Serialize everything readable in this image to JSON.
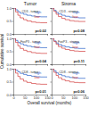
{
  "figure": {
    "ylabel": "Cumulative survival",
    "xlabel": "Overall survival (months)"
  },
  "chart_data": [
    {
      "type": "line",
      "title": "Tumor",
      "annotation": "CD3 - tumor",
      "p_label": "p=0.02",
      "xlim": [
        0,
        150
      ],
      "ylim": [
        0,
        1
      ],
      "xticks": [
        0,
        50,
        100,
        150
      ],
      "yticks": [
        {
          "value": 0,
          "label": "0.0"
        },
        {
          "value": 0.5,
          "label": "0.5"
        },
        {
          "value": 1,
          "label": "1.0"
        }
      ],
      "tick_labels": "y",
      "series": [
        {
          "name": "high",
          "color": "#2a62c9",
          "x": [
            0,
            10,
            20,
            30,
            45,
            60,
            80,
            100,
            120,
            150
          ],
          "values": [
            1,
            0.93,
            0.86,
            0.8,
            0.76,
            0.72,
            0.69,
            0.67,
            0.66,
            0.66
          ]
        },
        {
          "name": "low",
          "color": "#d23c3c",
          "x": [
            0,
            10,
            20,
            30,
            45,
            60,
            80,
            100,
            120,
            150
          ],
          "values": [
            1,
            0.85,
            0.72,
            0.62,
            0.55,
            0.5,
            0.46,
            0.44,
            0.43,
            0.43
          ]
        }
      ]
    },
    {
      "type": "line",
      "title": "Stroma",
      "annotation": "CD3 - stroma",
      "p_label": "p=0.08",
      "xlim": [
        0,
        150
      ],
      "ylim": [
        0,
        1
      ],
      "xticks": [
        0,
        50,
        100,
        150
      ],
      "yticks": [
        {
          "value": 0,
          "label": "0.0"
        },
        {
          "value": 0.5,
          "label": "0.5"
        },
        {
          "value": 1,
          "label": "1.0"
        }
      ],
      "tick_labels": false,
      "series": [
        {
          "name": "high",
          "color": "#2a62c9",
          "x": [
            0,
            10,
            20,
            30,
            45,
            60,
            80,
            100,
            120,
            150
          ],
          "values": [
            1,
            0.91,
            0.83,
            0.77,
            0.72,
            0.68,
            0.65,
            0.63,
            0.62,
            0.62
          ]
        },
        {
          "name": "low",
          "color": "#d23c3c",
          "x": [
            0,
            10,
            20,
            30,
            45,
            60,
            80,
            100,
            120,
            150
          ],
          "values": [
            1,
            0.87,
            0.76,
            0.67,
            0.6,
            0.55,
            0.51,
            0.49,
            0.48,
            0.48
          ]
        }
      ]
    },
    {
      "type": "line",
      "annotation": "FoxP3 - tumor",
      "p_label": "p=0.04",
      "xlim": [
        0,
        150
      ],
      "ylim": [
        0,
        1
      ],
      "xticks": [
        0,
        50,
        100,
        150
      ],
      "yticks": [
        {
          "value": 0,
          "label": "0.0"
        },
        {
          "value": 0.5,
          "label": "0.5"
        },
        {
          "value": 1,
          "label": "1.0"
        }
      ],
      "tick_labels": "y",
      "series": [
        {
          "name": "high",
          "color": "#2a62c9",
          "x": [
            0,
            10,
            20,
            30,
            45,
            60,
            80,
            100,
            120,
            150
          ],
          "values": [
            1,
            0.92,
            0.85,
            0.79,
            0.74,
            0.7,
            0.67,
            0.65,
            0.64,
            0.64
          ]
        },
        {
          "name": "low",
          "color": "#d23c3c",
          "x": [
            0,
            10,
            20,
            30,
            45,
            60,
            80,
            100,
            120,
            150
          ],
          "values": [
            1,
            0.84,
            0.71,
            0.61,
            0.54,
            0.49,
            0.45,
            0.43,
            0.42,
            0.42
          ]
        }
      ]
    },
    {
      "type": "line",
      "annotation": "FoxP3 - stroma",
      "p_label": "p=0.11",
      "xlim": [
        0,
        150
      ],
      "ylim": [
        0,
        1
      ],
      "xticks": [
        0,
        50,
        100,
        150
      ],
      "yticks": [
        {
          "value": 0,
          "label": "0.0"
        },
        {
          "value": 0.5,
          "label": "0.5"
        },
        {
          "value": 1,
          "label": "1.0"
        }
      ],
      "tick_labels": false,
      "series": [
        {
          "name": "high",
          "color": "#2a62c9",
          "x": [
            0,
            10,
            20,
            30,
            45,
            60,
            80,
            100,
            120,
            150
          ],
          "values": [
            1,
            0.9,
            0.82,
            0.76,
            0.71,
            0.67,
            0.64,
            0.62,
            0.61,
            0.61
          ]
        },
        {
          "name": "low",
          "color": "#d23c3c",
          "x": [
            0,
            10,
            20,
            30,
            45,
            60,
            80,
            100,
            120,
            150
          ],
          "values": [
            1,
            0.88,
            0.77,
            0.68,
            0.62,
            0.57,
            0.53,
            0.51,
            0.5,
            0.5
          ]
        }
      ]
    },
    {
      "type": "line",
      "annotation": "CD8 - tumor",
      "p_label": "p=0.01",
      "xlim": [
        0,
        150
      ],
      "ylim": [
        0,
        1
      ],
      "xticks": [
        0,
        50,
        100,
        150
      ],
      "yticks": [
        {
          "value": 0,
          "label": "0.0"
        },
        {
          "value": 0.5,
          "label": "0.5"
        },
        {
          "value": 1,
          "label": "1.0"
        }
      ],
      "series": [
        {
          "name": "high",
          "color": "#2a62c9",
          "x": [
            0,
            10,
            20,
            30,
            45,
            60,
            80,
            100,
            120,
            150
          ],
          "values": [
            1,
            0.94,
            0.88,
            0.82,
            0.78,
            0.74,
            0.71,
            0.69,
            0.68,
            0.68
          ]
        },
        {
          "name": "low",
          "color": "#d23c3c",
          "x": [
            0,
            10,
            20,
            30,
            45,
            60,
            80,
            100,
            120,
            150
          ],
          "values": [
            1,
            0.83,
            0.7,
            0.6,
            0.52,
            0.47,
            0.43,
            0.41,
            0.4,
            0.4
          ]
        }
      ]
    },
    {
      "type": "line",
      "annotation": "CD8 - stroma",
      "p_label": "p=0.06",
      "xlim": [
        0,
        150
      ],
      "ylim": [
        0,
        1
      ],
      "xticks": [
        0,
        50,
        100,
        150
      ],
      "yticks": [
        {
          "value": 0,
          "label": "0.0"
        },
        {
          "value": 0.5,
          "label": "0.5"
        },
        {
          "value": 1,
          "label": "1.0"
        }
      ],
      "tick_labels": "x",
      "series": [
        {
          "name": "high",
          "color": "#2a62c9",
          "x": [
            0,
            10,
            20,
            30,
            45,
            60,
            80,
            100,
            120,
            150
          ],
          "values": [
            1,
            0.92,
            0.84,
            0.78,
            0.73,
            0.69,
            0.66,
            0.64,
            0.63,
            0.63
          ]
        },
        {
          "name": "low",
          "color": "#d23c3c",
          "x": [
            0,
            10,
            20,
            30,
            45,
            60,
            80,
            100,
            120,
            150
          ],
          "values": [
            1,
            0.86,
            0.74,
            0.65,
            0.58,
            0.53,
            0.49,
            0.47,
            0.46,
            0.46
          ]
        }
      ]
    }
  ]
}
